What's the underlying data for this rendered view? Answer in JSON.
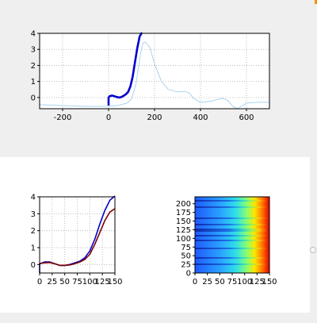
{
  "colors": {
    "primary_line": "#0000cc",
    "secondary_line": "#a8d4f0",
    "dark_red_line": "#7a0000",
    "grid": "#b0b0b0",
    "background": "#ffffff"
  },
  "chart_data": [
    {
      "id": "top-line-chart",
      "type": "line",
      "title": "",
      "xlabel": "",
      "ylabel": "",
      "xlim": [
        -300,
        700
      ],
      "ylim": [
        -0.7,
        4.0
      ],
      "xticks": [
        "-200",
        "0",
        "200",
        "400",
        "600"
      ],
      "xtick_values": [
        -200,
        0,
        200,
        400,
        600
      ],
      "yticks": [
        "0",
        "1",
        "2",
        "3",
        "4"
      ],
      "ytick_values": [
        0,
        1,
        2,
        3,
        4
      ],
      "grid": true,
      "series": [
        {
          "color": "#a8d4f0",
          "x": [
            -300,
            -200,
            -100,
            0,
            40,
            80,
            100,
            120,
            140,
            150,
            160,
            180,
            200,
            230,
            260,
            300,
            330,
            350,
            370,
            400,
            440,
            480,
            500,
            520,
            540,
            560,
            600,
            650,
            700
          ],
          "y": [
            -0.45,
            -0.5,
            -0.55,
            -0.55,
            -0.5,
            -0.35,
            -0.1,
            0.9,
            2.8,
            3.4,
            3.45,
            3.1,
            2.1,
            1.0,
            0.5,
            0.35,
            0.38,
            0.3,
            -0.05,
            -0.3,
            -0.25,
            -0.1,
            -0.05,
            -0.2,
            -0.55,
            -0.7,
            -0.35,
            -0.3,
            -0.3
          ]
        },
        {
          "color": "#0000cc",
          "x": [
            0,
            0,
            5,
            15,
            25,
            35,
            45,
            55,
            65,
            75,
            85,
            95,
            105,
            115,
            125,
            135,
            145
          ],
          "y": [
            -0.5,
            0.0,
            0.08,
            0.12,
            0.08,
            0.03,
            0.0,
            0.02,
            0.1,
            0.2,
            0.35,
            0.7,
            1.3,
            2.2,
            3.1,
            3.8,
            4.05
          ]
        }
      ]
    },
    {
      "id": "bottom-left-line-chart",
      "type": "line",
      "title": "",
      "xlabel": "",
      "ylabel": "",
      "xlim": [
        0,
        150
      ],
      "ylim": [
        -0.5,
        4.0
      ],
      "xticks": [
        "0",
        "25",
        "50",
        "75",
        "100",
        "125",
        "150"
      ],
      "xtick_values": [
        0,
        25,
        50,
        75,
        100,
        125,
        150
      ],
      "yticks": [
        "0",
        "1",
        "2",
        "3",
        "4"
      ],
      "ytick_values": [
        0,
        1,
        2,
        3,
        4
      ],
      "grid": true,
      "series": [
        {
          "color": "#0000cc",
          "x": [
            0,
            0,
            5,
            10,
            20,
            30,
            40,
            50,
            60,
            70,
            80,
            90,
            100,
            110,
            120,
            130,
            140,
            150
          ],
          "y": [
            -0.5,
            0.05,
            0.1,
            0.15,
            0.15,
            0.05,
            -0.05,
            -0.05,
            0.0,
            0.1,
            0.2,
            0.4,
            0.8,
            1.5,
            2.4,
            3.2,
            3.8,
            4.05
          ]
        },
        {
          "color": "#7a0000",
          "x": [
            0,
            5,
            10,
            20,
            30,
            40,
            50,
            60,
            70,
            80,
            90,
            100,
            110,
            120,
            130,
            140,
            150
          ],
          "y": [
            0.05,
            0.08,
            0.1,
            0.12,
            0.05,
            -0.05,
            -0.05,
            -0.02,
            0.05,
            0.15,
            0.3,
            0.6,
            1.2,
            1.9,
            2.6,
            3.1,
            3.3
          ]
        }
      ]
    },
    {
      "id": "bottom-right-heatmap",
      "type": "heatmap",
      "title": "",
      "xlabel": "",
      "ylabel": "",
      "xlim": [
        0,
        150
      ],
      "ylim": [
        0,
        220
      ],
      "xticks": [
        "0",
        "25",
        "50",
        "75",
        "100",
        "125",
        "150"
      ],
      "xtick_values": [
        0,
        25,
        50,
        75,
        100,
        125,
        150
      ],
      "yticks": [
        "0",
        "25",
        "50",
        "75",
        "100",
        "125",
        "150",
        "175",
        "200"
      ],
      "ytick_values": [
        0,
        25,
        50,
        75,
        100,
        125,
        150,
        175,
        200
      ],
      "colormap": "jet",
      "rows": 220,
      "description": "rows of signals, low values (blue) on left rising to high values (red) on the right"
    }
  ]
}
